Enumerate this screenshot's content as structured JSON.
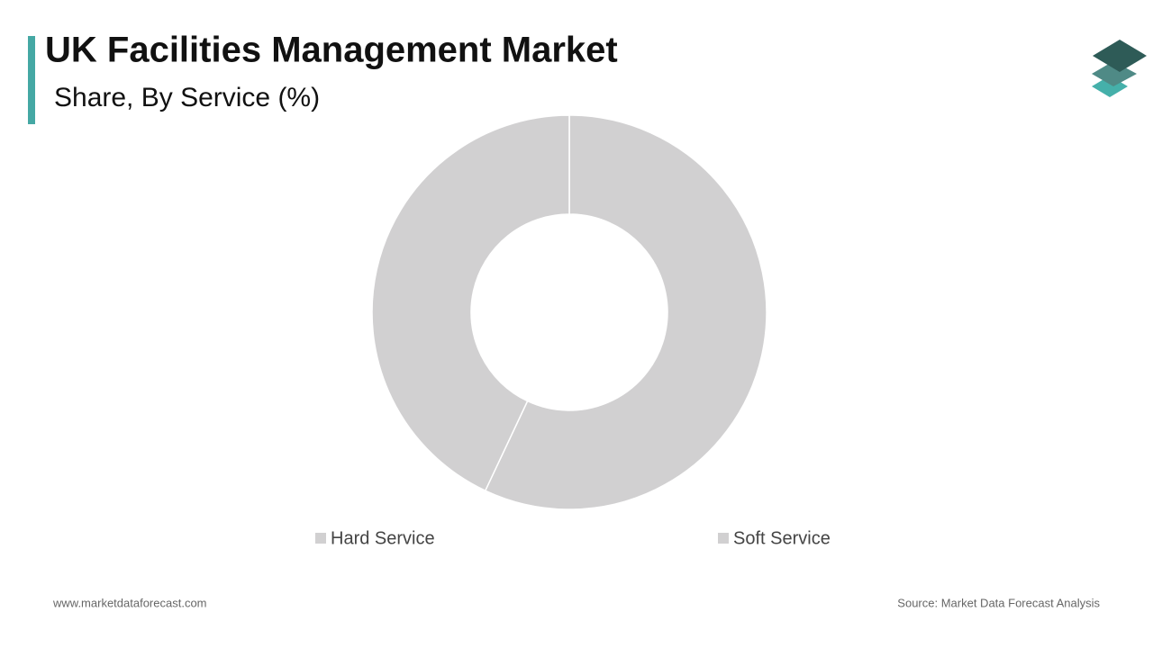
{
  "chart_data": {
    "type": "donut",
    "title": "UK Facilities Management Market",
    "subtitle": "Share, By Service (%)",
    "categories": [
      "Hard Service",
      "Soft Service"
    ],
    "values": [
      57,
      43
    ],
    "colors": [
      "#d1d0d1",
      "#d1d0d1"
    ],
    "footer_left": "www.marketdataforecast.com",
    "footer_right": "Source: Market Data Forecast Analysis"
  }
}
